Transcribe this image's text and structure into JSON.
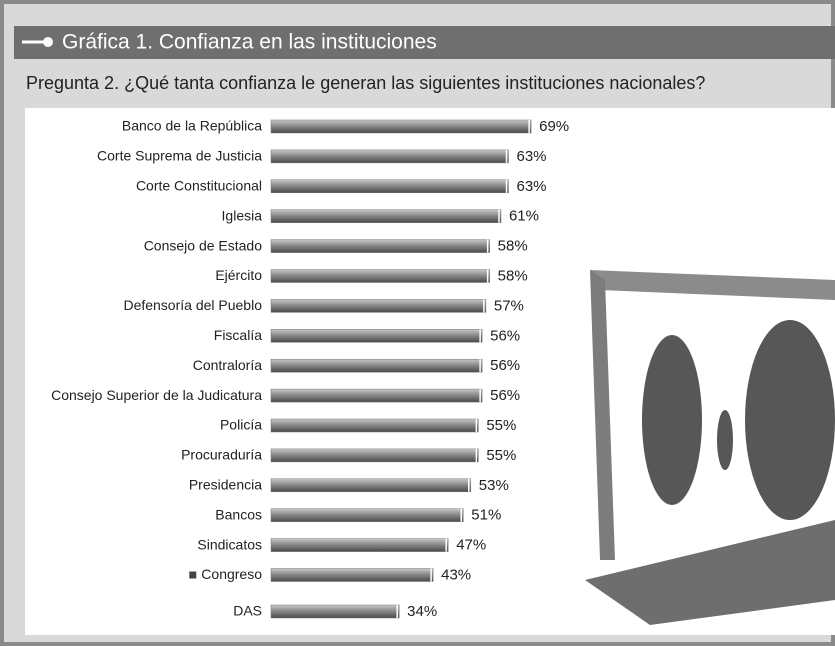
{
  "chart_data": {
    "type": "bar",
    "orientation": "horizontal",
    "title": "Gráfica 1. Confianza en las instituciones",
    "subtitle": "Pregunta 2. ¿Qué tanta confianza le generan las siguientes instituciones nacionales?",
    "categories": [
      "Banco de la República",
      "Corte Suprema de Justicia",
      "Corte Constitucional",
      "Iglesia",
      "Consejo de Estado",
      "Ejército",
      "Defensoría del Pueblo",
      "Fiscalía",
      "Contraloría",
      "Consejo Superior de la Judicatura",
      "Policía",
      "Procuraduría",
      "Presidencia",
      "Bancos",
      "Sindicatos",
      "Congreso",
      "DAS"
    ],
    "values": [
      69,
      63,
      63,
      61,
      58,
      58,
      57,
      56,
      56,
      56,
      55,
      55,
      53,
      51,
      47,
      43,
      34
    ],
    "value_labels": [
      "69%",
      "63%",
      "63%",
      "61%",
      "58%",
      "58%",
      "57%",
      "56%",
      "56%",
      "56%",
      "55%",
      "55%",
      "53%",
      "51%",
      "47%",
      "43%",
      "34%"
    ],
    "color": "#777777"
  }
}
